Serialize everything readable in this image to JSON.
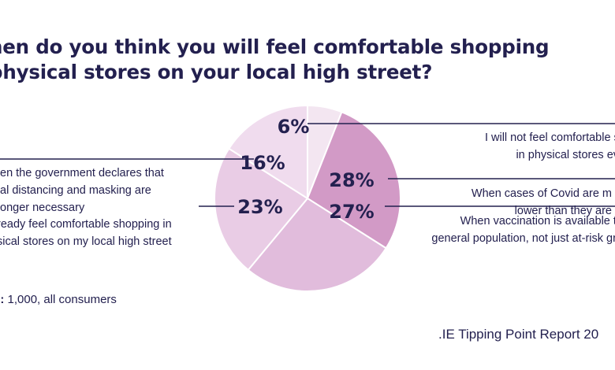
{
  "title_lines": [
    "hen do you think you will feel comfortable shopping",
    "physical stores on your local high street?"
  ],
  "base_label": "e:",
  "base_value": " 1,000, all consumers",
  "source": ".IE Tipping Point Report 20",
  "chart_data": {
    "type": "pie",
    "title": "hen do you think you will feel comfortable shopping physical stores on your local high street?",
    "slices": [
      {
        "label_lines": [
          "I will not feel comfortable shop",
          "in physical stores ever a"
        ],
        "value": 6,
        "display": "6%",
        "color": "#f3e6f1"
      },
      {
        "label_lines": [
          "When cases of Covid are m",
          "lower than they are"
        ],
        "value": 28,
        "display": "28%",
        "color": "#d29ac6"
      },
      {
        "label_lines": [
          "When vaccination is available to",
          "general population, not just at-risk gro"
        ],
        "value": 27,
        "display": "27%",
        "color": "#e1bcdc"
      },
      {
        "label_lines": [
          "ready feel comfortable shopping in",
          "sical stores on my local high street"
        ],
        "value": 23,
        "display": "23%",
        "color": "#e9cce5"
      },
      {
        "label_lines": [
          "en the government declares that",
          "al distancing and masking are",
          "onger necessary"
        ],
        "value": 16,
        "display": "16%",
        "color": "#f0dcee"
      }
    ]
  }
}
